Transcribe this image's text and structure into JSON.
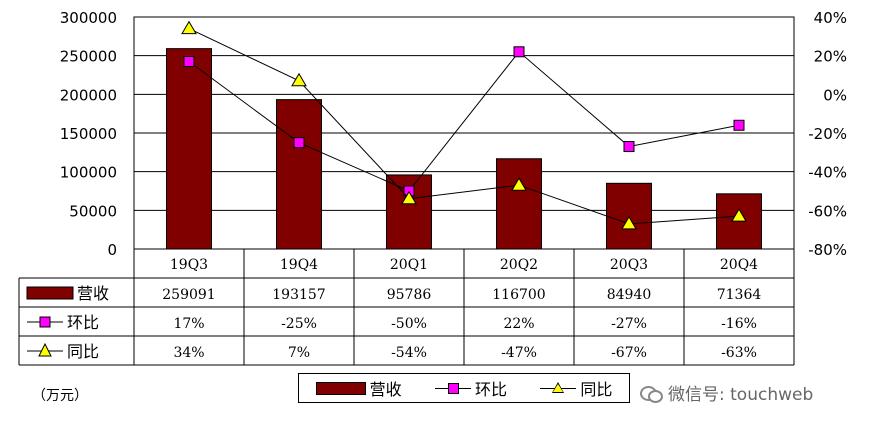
{
  "chart_data": {
    "type": "bar",
    "categories": [
      "19Q3",
      "19Q4",
      "20Q1",
      "20Q2",
      "20Q3",
      "20Q4"
    ],
    "series": [
      {
        "name": "营收",
        "type": "bar",
        "axis": "left",
        "values": [
          259091,
          193157,
          95786,
          116700,
          84940,
          71364
        ],
        "labels": [
          "259091",
          "193157",
          "95786",
          "116700",
          "84940",
          "71364"
        ],
        "color": "#800000"
      },
      {
        "name": "环比",
        "type": "line",
        "axis": "right",
        "values": [
          17,
          -25,
          -50,
          22,
          -27,
          -16
        ],
        "labels": [
          "17%",
          "-25%",
          "-50%",
          "22%",
          "-27%",
          "-16%"
        ],
        "color": "#ff00ff",
        "marker": "square"
      },
      {
        "name": "同比",
        "type": "line",
        "axis": "right",
        "values": [
          34,
          7,
          -54,
          -47,
          -67,
          -63
        ],
        "labels": [
          "34%",
          "7%",
          "-54%",
          "-47%",
          "-67%",
          "-63%"
        ],
        "color": "#ffff00",
        "marker": "triangle"
      }
    ],
    "ylim": [
      0,
      300000
    ],
    "yticks": [
      "300000",
      "250000",
      "200000",
      "150000",
      "100000",
      "50000",
      "0"
    ],
    "y2lim": [
      -80,
      40
    ],
    "y2ticks": [
      "40%",
      "20%",
      "0%",
      "-20%",
      "-40%",
      "-60%",
      "-80%"
    ],
    "unit_label": "（万元）",
    "grid": true,
    "legend_position": "bottom-center",
    "data_table": true
  },
  "legend": {
    "bar": "营收",
    "mom": "环比",
    "yoy": "同比"
  },
  "watermark": {
    "text": "微信号: touchweb",
    "icon": "wechat-icon"
  }
}
